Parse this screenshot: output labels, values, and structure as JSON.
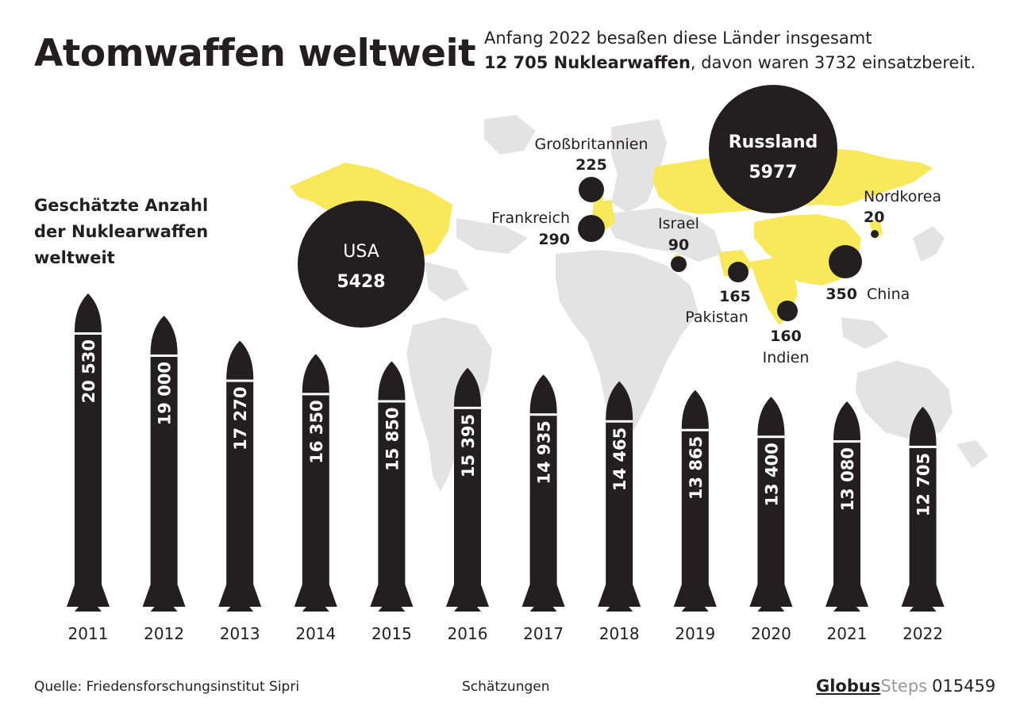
{
  "header": {
    "title": "Atomwaffen weltweit",
    "intro_line1": "Anfang 2022 besaßen diese Länder insgesamt",
    "intro_bold": "12 705 Nuklearwaffen",
    "intro_rest": ", davon waren 3732 einsatzbereit.",
    "subtitle": "Geschätzte Anzahl der Nuklearwaffen weltweit"
  },
  "colors": {
    "dark": "#231f20",
    "highlight": "#f8e85a",
    "land": "#e3e3e3",
    "text_on_dark": "#ffffff"
  },
  "map": {
    "countries": [
      {
        "name": "USA",
        "value": "5428",
        "highlighted": true
      },
      {
        "name": "Russland",
        "value": "5977",
        "highlighted": true
      },
      {
        "name": "Großbritannien",
        "value": "225",
        "highlighted": true
      },
      {
        "name": "Frankreich",
        "value": "290",
        "highlighted": true
      },
      {
        "name": "Israel",
        "value": "90",
        "highlighted": true
      },
      {
        "name": "Pakistan",
        "value": "165",
        "highlighted": true
      },
      {
        "name": "Indien",
        "value": "160",
        "highlighted": true
      },
      {
        "name": "China",
        "value": "350",
        "highlighted": true
      },
      {
        "name": "Nordkorea",
        "value": "20",
        "highlighted": true
      }
    ]
  },
  "chart_data": {
    "type": "bar",
    "categories": [
      "2011",
      "2012",
      "2013",
      "2014",
      "2015",
      "2016",
      "2017",
      "2018",
      "2019",
      "2020",
      "2021",
      "2022"
    ],
    "values": [
      20530,
      19000,
      17270,
      16350,
      15850,
      15395,
      14935,
      14465,
      13865,
      13400,
      13080,
      12705
    ],
    "value_labels": [
      "20 530",
      "19 000",
      "17 270",
      "16 350",
      "15 850",
      "15 395",
      "14 935",
      "14 465",
      "13 865",
      "13 400",
      "13 080",
      "12 705"
    ],
    "title": "Geschätzte Anzahl der Nuklearwaffen weltweit",
    "xlabel": "",
    "ylabel": "",
    "ylim": [
      0,
      20530
    ],
    "mark_shape": "missile",
    "grid": false
  },
  "footer": {
    "source": "Quelle: Friedensforschungsinstitut Sipri",
    "note": "Schätzungen",
    "brand_globus": "Globus",
    "brand_steps": "Steps",
    "code": "015459"
  }
}
